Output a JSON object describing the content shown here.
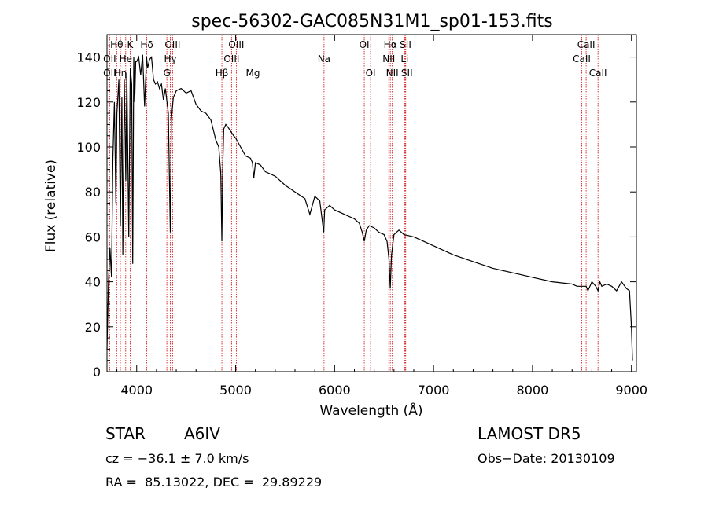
{
  "chart_data": {
    "type": "line",
    "title": "spec-56302-GAC085N31M1_sp01-153.fits",
    "xlabel": "Wavelength (Å)",
    "ylabel": "Flux (relative)",
    "xlim": [
      3700,
      9050
    ],
    "ylim": [
      0,
      150
    ],
    "xticks": [
      4000,
      5000,
      6000,
      7000,
      8000,
      9000
    ],
    "yticks": [
      0,
      20,
      40,
      60,
      80,
      100,
      120,
      140
    ],
    "grid": false,
    "series": [
      {
        "x": [
          3700,
          3715,
          3730,
          3745,
          3760,
          3775,
          3790,
          3800,
          3820,
          3835,
          3850,
          3860,
          3875,
          3890,
          3900,
          3920,
          3935,
          3950,
          3960,
          3970,
          3980,
          3990,
          4000,
          4020,
          4040,
          4060,
          4080,
          4100,
          4110,
          4130,
          4150,
          4170,
          4190,
          4210,
          4230,
          4250,
          4270,
          4290,
          4320,
          4340,
          4350,
          4370,
          4400,
          4450,
          4500,
          4550,
          4600,
          4650,
          4700,
          4750,
          4800,
          4830,
          4850,
          4861,
          4870,
          4880,
          4900,
          4920,
          4950,
          4980,
          5000,
          5050,
          5100,
          5150,
          5170,
          5183,
          5200,
          5250,
          5300,
          5400,
          5500,
          5600,
          5700,
          5750,
          5800,
          5850,
          5890,
          5900,
          5950,
          6000,
          6100,
          6200,
          6250,
          6280,
          6300,
          6320,
          6350,
          6400,
          6450,
          6500,
          6530,
          6550,
          6563,
          6575,
          6600,
          6650,
          6700,
          6800,
          6900,
          7000,
          7200,
          7400,
          7600,
          7800,
          8000,
          8200,
          8400,
          8450,
          8500,
          8542,
          8560,
          8600,
          8640,
          8662,
          8680,
          8700,
          8750,
          8800,
          8850,
          8900,
          8950,
          8980,
          9000,
          9010
        ],
        "y": [
          10,
          40,
          55,
          42,
          95,
          120,
          75,
          115,
          130,
          65,
          122,
          52,
          130,
          85,
          133,
          60,
          135,
          128,
          48,
          140,
          120,
          138,
          138,
          140,
          132,
          141,
          118,
          140,
          135,
          139,
          140,
          130,
          128,
          129,
          126,
          128,
          121,
          126,
          115,
          62,
          112,
          122,
          125,
          126,
          124,
          125,
          119,
          116,
          115,
          112,
          103,
          100,
          88,
          58,
          92,
          108,
          110,
          109,
          107,
          105,
          104,
          100,
          96,
          95,
          93,
          86,
          93,
          92,
          89,
          87,
          83,
          80,
          77,
          70,
          78,
          76,
          62,
          72,
          74,
          72,
          70,
          68,
          66,
          62,
          58,
          63,
          65,
          64,
          62,
          61,
          58,
          50,
          37,
          52,
          61,
          63,
          61,
          60,
          58,
          56,
          52,
          49,
          46,
          44,
          42,
          40,
          39,
          38,
          38,
          38,
          36,
          40,
          38,
          36,
          40,
          38,
          39,
          38,
          36,
          40,
          37,
          36,
          20,
          5
        ]
      }
    ],
    "lines": [
      {
        "name": "Hθ",
        "wave": 3798,
        "row": 0
      },
      {
        "name": "K",
        "wave": 3934,
        "row": 0
      },
      {
        "name": "Hδ",
        "wave": 4102,
        "row": 0
      },
      {
        "name": "OIII",
        "wave": 4363,
        "row": 0
      },
      {
        "name": "OIII",
        "wave": 5007,
        "row": 0
      },
      {
        "name": "OI",
        "wave": 6300,
        "row": 0
      },
      {
        "name": "Hα",
        "wave": 6563,
        "row": 0
      },
      {
        "name": "SII",
        "wave": 6717,
        "row": 0
      },
      {
        "name": "CaII",
        "wave": 8542,
        "row": 0
      },
      {
        "name": "OII",
        "wave": 3727,
        "row": 1
      },
      {
        "name": "He",
        "wave": 3889,
        "row": 1
      },
      {
        "name": "Hγ",
        "wave": 4340,
        "row": 1
      },
      {
        "name": "OIII",
        "wave": 4959,
        "row": 1
      },
      {
        "name": "Na",
        "wave": 5893,
        "row": 1
      },
      {
        "name": "NII",
        "wave": 6548,
        "row": 1
      },
      {
        "name": "Li",
        "wave": 6708,
        "row": 1
      },
      {
        "name": "CaII",
        "wave": 8498,
        "row": 1
      },
      {
        "name": "OII",
        "wave": 3727,
        "row": 2
      },
      {
        "name": "Hη",
        "wave": 3835,
        "row": 2
      },
      {
        "name": "G",
        "wave": 4305,
        "row": 2
      },
      {
        "name": "Hβ",
        "wave": 4861,
        "row": 2
      },
      {
        "name": "Mg",
        "wave": 5175,
        "row": 2
      },
      {
        "name": "OI",
        "wave": 6364,
        "row": 2
      },
      {
        "name": "NII",
        "wave": 6583,
        "row": 2
      },
      {
        "name": "SII",
        "wave": 6731,
        "row": 2
      },
      {
        "name": "CaII",
        "wave": 8662,
        "row": 2
      }
    ]
  },
  "info": {
    "class_label": "STAR",
    "subclass": "A6IV",
    "survey": "LAMOST DR5",
    "cz": "cz = −36.1 ± 7.0 km/s",
    "obs_date": "Obs−Date: 20130109",
    "radec": "RA =  85.13022, DEC =  29.89229"
  }
}
